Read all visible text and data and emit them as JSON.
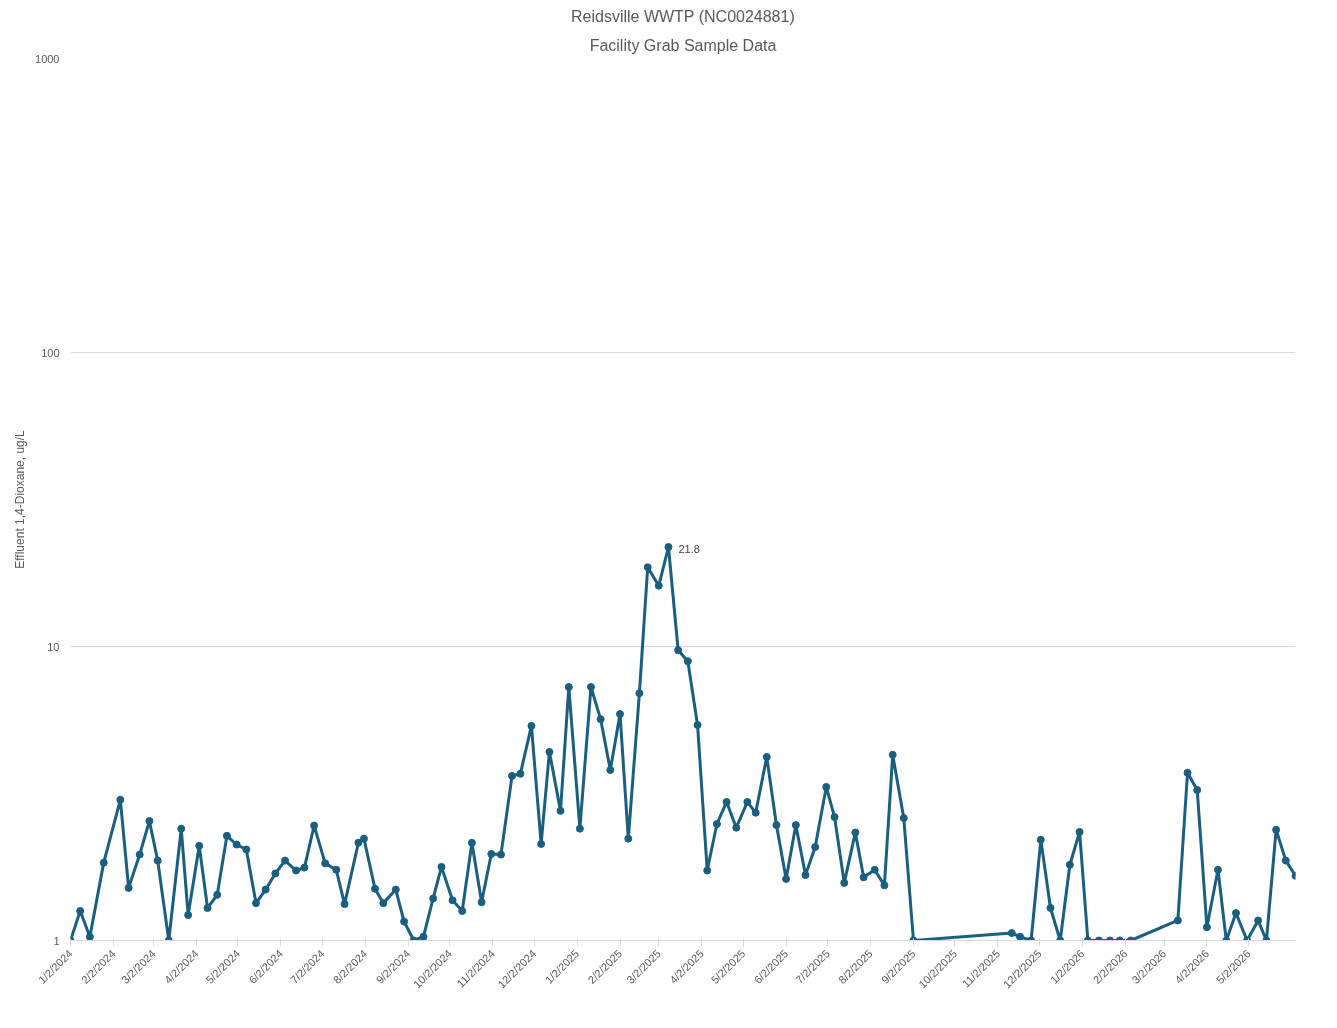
{
  "chart_data": {
    "type": "line",
    "title": "Reidsville WWTP (NC0024881)",
    "subtitle": "Facility Grab Sample Data",
    "ylabel": "Effluent 1,4-Dioxane, ug/L",
    "log": true,
    "grid": "y",
    "marker": "circle",
    "line_style": "solid",
    "ylim": [
      1,
      1000
    ],
    "yticks": [
      1,
      10,
      100,
      1000
    ],
    "xlim": [
      "2024-01-02",
      "2026-06-05"
    ],
    "xticks": [
      {
        "value": "2024-01-02",
        "label": "1/2/2024"
      },
      {
        "value": "2024-02-02",
        "label": "2/2/2024"
      },
      {
        "value": "2024-03-02",
        "label": "3/2/2024"
      },
      {
        "value": "2024-04-02",
        "label": "4/2/2024"
      },
      {
        "value": "2024-05-02",
        "label": "5/2/2024"
      },
      {
        "value": "2024-06-02",
        "label": "6/2/2024"
      },
      {
        "value": "2024-07-02",
        "label": "7/2/2024"
      },
      {
        "value": "2024-08-02",
        "label": "8/2/2024"
      },
      {
        "value": "2024-09-02",
        "label": "9/2/2024"
      },
      {
        "value": "2024-10-02",
        "label": "10/2/2024"
      },
      {
        "value": "2024-11-02",
        "label": "11/2/2024"
      },
      {
        "value": "2024-12-02",
        "label": "12/2/2024"
      },
      {
        "value": "2025-01-02",
        "label": "1/2/2025"
      },
      {
        "value": "2025-02-02",
        "label": "2/2/2025"
      },
      {
        "value": "2025-03-02",
        "label": "3/2/2025"
      },
      {
        "value": "2025-04-02",
        "label": "4/2/2025"
      },
      {
        "value": "2025-05-02",
        "label": "5/2/2025"
      },
      {
        "value": "2025-06-02",
        "label": "6/2/2025"
      },
      {
        "value": "2025-07-02",
        "label": "7/2/2025"
      },
      {
        "value": "2025-08-02",
        "label": "8/2/2025"
      },
      {
        "value": "2025-09-02",
        "label": "9/2/2025"
      },
      {
        "value": "2025-10-02",
        "label": "10/2/2025"
      },
      {
        "value": "2025-11-02",
        "label": "11/2/2025"
      },
      {
        "value": "2025-12-02",
        "label": "12/2/2025"
      },
      {
        "value": "2026-01-02",
        "label": "1/2/2026"
      },
      {
        "value": "2026-02-02",
        "label": "2/2/2026"
      },
      {
        "value": "2026-03-02",
        "label": "3/2/2026"
      },
      {
        "value": "2026-04-02",
        "label": "4/2/2026"
      },
      {
        "value": "2026-05-02",
        "label": "5/2/2026"
      }
    ],
    "x": [
      "2024-01-02",
      "2024-01-09",
      "2024-01-16",
      "2024-01-26",
      "2024-02-07",
      "2024-02-13",
      "2024-02-21",
      "2024-02-28",
      "2024-03-05",
      "2024-03-13",
      "2024-03-22",
      "2024-03-27",
      "2024-04-04",
      "2024-04-10",
      "2024-04-17",
      "2024-04-24",
      "2024-05-01",
      "2024-05-08",
      "2024-05-15",
      "2024-05-22",
      "2024-05-29",
      "2024-06-05",
      "2024-06-13",
      "2024-06-19",
      "2024-06-26",
      "2024-07-04",
      "2024-07-12",
      "2024-07-18",
      "2024-07-28",
      "2024-08-01",
      "2024-08-09",
      "2024-08-15",
      "2024-08-24",
      "2024-08-30",
      "2024-09-06",
      "2024-09-13",
      "2024-09-20",
      "2024-09-26",
      "2024-10-04",
      "2024-10-11",
      "2024-10-18",
      "2024-10-25",
      "2024-11-01",
      "2024-11-08",
      "2024-11-16",
      "2024-11-22",
      "2024-11-30",
      "2024-12-07",
      "2024-12-13",
      "2024-12-21",
      "2024-12-27",
      "2025-01-04",
      "2025-01-12",
      "2025-01-19",
      "2025-01-26",
      "2025-02-02",
      "2025-02-08",
      "2025-02-16",
      "2025-02-22",
      "2025-03-02",
      "2025-03-09",
      "2025-03-16",
      "2025-03-23",
      "2025-03-30",
      "2025-04-06",
      "2025-04-13",
      "2025-04-20",
      "2025-04-27",
      "2025-05-05",
      "2025-05-11",
      "2025-05-19",
      "2025-05-26",
      "2025-06-02",
      "2025-06-09",
      "2025-06-16",
      "2025-06-23",
      "2025-07-01",
      "2025-07-07",
      "2025-07-14",
      "2025-07-22",
      "2025-07-28",
      "2025-08-05",
      "2025-08-12",
      "2025-08-18",
      "2025-08-26",
      "2025-09-02",
      "2025-11-12",
      "2025-11-18",
      "2025-11-26",
      "2025-12-03",
      "2025-12-10",
      "2025-12-17",
      "2025-12-24",
      "2025-12-31",
      "2026-01-06",
      "2026-01-14",
      "2026-01-22",
      "2026-01-29",
      "2026-02-06",
      "2026-03-12",
      "2026-03-19",
      "2026-03-26",
      "2026-04-02",
      "2026-04-10",
      "2026-04-16",
      "2026-04-23",
      "2026-05-01",
      "2026-05-09",
      "2026-05-15",
      "2026-05-22",
      "2026-05-29",
      "2026-06-05"
    ],
    "series": [
      {
        "color": "#1a5e80",
        "values": [
          1,
          1.26,
          1.03,
          1.84,
          3.01,
          1.51,
          1.96,
          2.55,
          1.87,
          1,
          2.4,
          1.22,
          2.1,
          1.29,
          1.43,
          2.27,
          2.12,
          2.04,
          1.34,
          1.49,
          1.69,
          1.87,
          1.73,
          1.77,
          2.46,
          1.83,
          1.74,
          1.33,
          2.15,
          2.22,
          1.5,
          1.34,
          1.49,
          1.16,
          1,
          1.03,
          1.39,
          1.78,
          1.37,
          1.26,
          2.15,
          1.35,
          1.97,
          1.96,
          3.63,
          3.69,
          5.37,
          2.13,
          4.38,
          2.76,
          7.28,
          2.4,
          7.28,
          5.66,
          3.8,
          5.89,
          2.22,
          6.94,
          18.6,
          16.1,
          21.8,
          9.71,
          8.91,
          5.41,
          1.73,
          2.49,
          2.96,
          2.42,
          2.96,
          2.72,
          4.21,
          2.47,
          1.62,
          2.47,
          1.67,
          2.08,
          3.33,
          2.63,
          1.57,
          2.33,
          1.64,
          1.74,
          1.54,
          4.28,
          2.61,
          1,
          1.06,
          1.03,
          1,
          2.2,
          1.29,
          1,
          1.81,
          2.34,
          1,
          1,
          1,
          1,
          1,
          1.17,
          3.72,
          3.25,
          1.11,
          1.74,
          1,
          1.24,
          1,
          1.17,
          1,
          2.38,
          1.87,
          1.66
        ]
      }
    ],
    "annotations": [
      {
        "text": "21.8",
        "x": "2025-03-09",
        "y": 21.8
      }
    ]
  }
}
